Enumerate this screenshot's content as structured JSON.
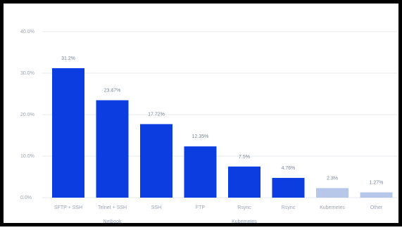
{
  "chart_data": {
    "type": "bar",
    "title": "",
    "xlabel": "",
    "ylabel": "",
    "ylim": [
      0,
      40
    ],
    "yticks": [
      "0.0%",
      "10.0%",
      "20.0%",
      "30.0%",
      "40.0%"
    ],
    "yticks_values": [
      0,
      10,
      20,
      30,
      40
    ],
    "grid": true,
    "categories": [
      "SFTP + SSH",
      "Telnet + SSH",
      "SSH",
      "FTP",
      "Rsync",
      "Rsync",
      "Kubernetes",
      "Other"
    ],
    "group_labels": [
      {
        "label": "Netbook",
        "category_index": 1
      },
      {
        "label": "Kubernetes",
        "category_index": 4
      }
    ],
    "values": [
      31.2,
      23.47,
      17.72,
      12.35,
      7.5,
      4.76,
      2.3,
      1.27
    ],
    "data_labels": [
      "31.2%",
      "23.47%",
      "17.72%",
      "12.35%",
      "7.5%",
      "4.76%",
      "2.3%",
      "1.27%"
    ],
    "colors": [
      "#0b3de0",
      "#0b3de0",
      "#0b3de0",
      "#0b3de0",
      "#0b3de0",
      "#0b3de0",
      "#b7c7ea",
      "#b7c7ea"
    ],
    "grid_color": "#e6e9ef"
  }
}
